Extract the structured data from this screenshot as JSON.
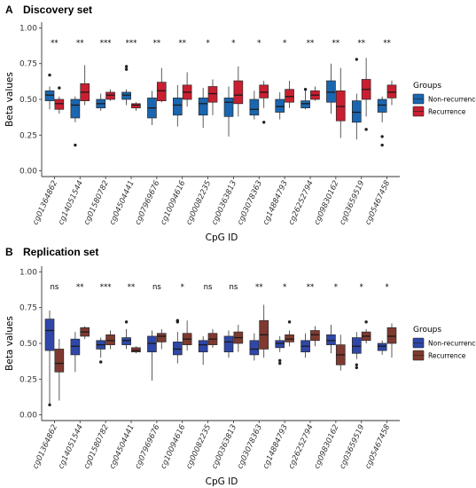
{
  "chart_data": [
    {
      "type": "box",
      "panel_letter": "A",
      "title": "Discovery set",
      "xlabel": "CpG ID",
      "ylabel": "Beta values",
      "ylim": [
        -0.04,
        1.04
      ],
      "yticks": [
        "0.00",
        "0.25",
        "0.50",
        "0.75",
        "1.00"
      ],
      "categories": [
        "cg01364862",
        "cg14051544",
        "cg01580782",
        "cg04504441",
        "cg07969676",
        "cg10094616",
        "cg00082235",
        "cg00363813",
        "cg03078363",
        "cg14884793",
        "cg26252794",
        "cg09830162",
        "cg03659519",
        "cg05467458"
      ],
      "significance": [
        "**",
        "**",
        "***",
        "***",
        "**",
        "**",
        "*",
        "*",
        "*",
        "*",
        "**",
        "**",
        "**",
        "**"
      ],
      "legend": {
        "title": "Groups",
        "position": "right"
      },
      "series": [
        {
          "name": "Non-recurrence",
          "color": "#1a66b0",
          "boxes": [
            {
              "low": 0.43,
              "q1": 0.49,
              "med": 0.53,
              "q3": 0.56,
              "high": 0.59,
              "outliers": [
                0.67
              ]
            },
            {
              "low": 0.34,
              "q1": 0.37,
              "med": 0.46,
              "q3": 0.5,
              "high": 0.52,
              "outliers": [
                0.18
              ]
            },
            {
              "low": 0.42,
              "q1": 0.44,
              "med": 0.47,
              "q3": 0.5,
              "high": 0.54,
              "outliers": []
            },
            {
              "low": 0.46,
              "q1": 0.5,
              "med": 0.53,
              "q3": 0.55,
              "high": 0.57,
              "outliers": [
                0.71,
                0.73
              ]
            },
            {
              "low": 0.32,
              "q1": 0.37,
              "med": 0.44,
              "q3": 0.51,
              "high": 0.56,
              "outliers": []
            },
            {
              "low": 0.31,
              "q1": 0.39,
              "med": 0.46,
              "q3": 0.51,
              "high": 0.6,
              "outliers": []
            },
            {
              "low": 0.3,
              "q1": 0.39,
              "med": 0.47,
              "q3": 0.51,
              "high": 0.58,
              "outliers": []
            },
            {
              "low": 0.24,
              "q1": 0.38,
              "med": 0.48,
              "q3": 0.51,
              "high": 0.59,
              "outliers": []
            },
            {
              "low": 0.36,
              "q1": 0.39,
              "med": 0.43,
              "q3": 0.5,
              "high": 0.56,
              "outliers": []
            },
            {
              "low": 0.36,
              "q1": 0.41,
              "med": 0.45,
              "q3": 0.5,
              "high": 0.55,
              "outliers": []
            },
            {
              "low": 0.43,
              "q1": 0.44,
              "med": 0.47,
              "q3": 0.49,
              "high": 0.56,
              "outliers": [
                0.57
              ]
            },
            {
              "low": 0.4,
              "q1": 0.48,
              "med": 0.55,
              "q3": 0.63,
              "high": 0.75,
              "outliers": []
            },
            {
              "low": 0.22,
              "q1": 0.34,
              "med": 0.41,
              "q3": 0.49,
              "high": 0.54,
              "outliers": [
                0.78
              ]
            },
            {
              "low": 0.34,
              "q1": 0.41,
              "med": 0.46,
              "q3": 0.5,
              "high": 0.52,
              "outliers": [
                0.24,
                0.18
              ]
            }
          ]
        },
        {
          "name": "Recurrence",
          "color": "#c91f31",
          "boxes": [
            {
              "low": 0.4,
              "q1": 0.43,
              "med": 0.47,
              "q3": 0.5,
              "high": 0.52,
              "outliers": [
                0.58
              ]
            },
            {
              "low": 0.46,
              "q1": 0.49,
              "med": 0.55,
              "q3": 0.61,
              "high": 0.74,
              "outliers": []
            },
            {
              "low": 0.49,
              "q1": 0.5,
              "med": 0.53,
              "q3": 0.55,
              "high": 0.57,
              "outliers": []
            },
            {
              "low": 0.42,
              "q1": 0.44,
              "med": 0.46,
              "q3": 0.47,
              "high": 0.48,
              "outliers": []
            },
            {
              "low": 0.48,
              "q1": 0.49,
              "med": 0.56,
              "q3": 0.62,
              "high": 0.72,
              "outliers": []
            },
            {
              "low": 0.45,
              "q1": 0.5,
              "med": 0.55,
              "q3": 0.6,
              "high": 0.69,
              "outliers": []
            },
            {
              "low": 0.39,
              "q1": 0.48,
              "med": 0.54,
              "q3": 0.59,
              "high": 0.64,
              "outliers": []
            },
            {
              "low": 0.38,
              "q1": 0.47,
              "med": 0.53,
              "q3": 0.63,
              "high": 0.73,
              "outliers": []
            },
            {
              "low": 0.44,
              "q1": 0.51,
              "med": 0.55,
              "q3": 0.6,
              "high": 0.63,
              "outliers": [
                0.34
              ]
            },
            {
              "low": 0.44,
              "q1": 0.48,
              "med": 0.52,
              "q3": 0.57,
              "high": 0.63,
              "outliers": []
            },
            {
              "low": 0.49,
              "q1": 0.5,
              "med": 0.53,
              "q3": 0.56,
              "high": 0.59,
              "outliers": []
            },
            {
              "low": 0.23,
              "q1": 0.35,
              "med": 0.45,
              "q3": 0.56,
              "high": 0.72,
              "outliers": []
            },
            {
              "low": 0.38,
              "q1": 0.5,
              "med": 0.57,
              "q3": 0.64,
              "high": 0.79,
              "outliers": [
                0.29
              ]
            },
            {
              "low": 0.46,
              "q1": 0.51,
              "med": 0.55,
              "q3": 0.6,
              "high": 0.63,
              "outliers": []
            }
          ]
        }
      ]
    },
    {
      "type": "box",
      "panel_letter": "B",
      "title": "Replication set",
      "xlabel": "CpG ID",
      "ylabel": "Beta values",
      "ylim": [
        -0.04,
        1.04
      ],
      "yticks": [
        "0.00",
        "0.25",
        "0.50",
        "0.75",
        "1.00"
      ],
      "categories": [
        "cg01364862",
        "cg14051544",
        "cg01580782",
        "cg04504441",
        "cg07969676",
        "cg10094616",
        "cg00082235",
        "cg00363813",
        "cg03078363",
        "cg14884793",
        "cg26252794",
        "cg09830162",
        "cg03659519",
        "cg05467458"
      ],
      "significance": [
        "ns",
        "**",
        "***",
        "**",
        "ns",
        "*",
        "ns",
        "ns",
        "**",
        "*",
        "**",
        "*",
        "*",
        "*"
      ],
      "legend": {
        "title": "Groups",
        "position": "right"
      },
      "series": [
        {
          "name": "Non-recurrence",
          "color": "#2f47a8",
          "boxes": [
            {
              "low": 0.07,
              "q1": 0.45,
              "med": 0.59,
              "q3": 0.67,
              "high": 0.73,
              "outliers": [
                0.07
              ]
            },
            {
              "low": 0.3,
              "q1": 0.42,
              "med": 0.48,
              "q3": 0.53,
              "high": 0.58,
              "outliers": []
            },
            {
              "low": 0.4,
              "q1": 0.46,
              "med": 0.49,
              "q3": 0.52,
              "high": 0.54,
              "outliers": [
                0.37
              ]
            },
            {
              "low": 0.46,
              "q1": 0.49,
              "med": 0.52,
              "q3": 0.54,
              "high": 0.6,
              "outliers": [
                0.65
              ]
            },
            {
              "low": 0.24,
              "q1": 0.44,
              "med": 0.5,
              "q3": 0.55,
              "high": 0.59,
              "outliers": []
            },
            {
              "low": 0.36,
              "q1": 0.42,
              "med": 0.46,
              "q3": 0.51,
              "high": 0.58,
              "outliers": [
                0.65,
                0.66
              ]
            },
            {
              "low": 0.35,
              "q1": 0.44,
              "med": 0.49,
              "q3": 0.52,
              "high": 0.55,
              "outliers": []
            },
            {
              "low": 0.4,
              "q1": 0.44,
              "med": 0.51,
              "q3": 0.55,
              "high": 0.59,
              "outliers": []
            },
            {
              "low": 0.38,
              "q1": 0.42,
              "med": 0.46,
              "q3": 0.52,
              "high": 0.57,
              "outliers": []
            },
            {
              "low": 0.44,
              "q1": 0.47,
              "med": 0.5,
              "q3": 0.52,
              "high": 0.55,
              "outliers": [
                0.38,
                0.36
              ]
            },
            {
              "low": 0.4,
              "q1": 0.44,
              "med": 0.48,
              "q3": 0.52,
              "high": 0.57,
              "outliers": []
            },
            {
              "low": 0.43,
              "q1": 0.49,
              "med": 0.52,
              "q3": 0.56,
              "high": 0.63,
              "outliers": []
            },
            {
              "low": 0.39,
              "q1": 0.43,
              "med": 0.48,
              "q3": 0.54,
              "high": 0.58,
              "outliers": [
                0.33,
                0.35
              ]
            },
            {
              "low": 0.42,
              "q1": 0.45,
              "med": 0.48,
              "q3": 0.5,
              "high": 0.52,
              "outliers": []
            }
          ]
        },
        {
          "name": "Recurrence",
          "color": "#7e3a30",
          "boxes": [
            {
              "low": 0.1,
              "q1": 0.3,
              "med": 0.36,
              "q3": 0.46,
              "high": 0.53,
              "outliers": []
            },
            {
              "low": 0.53,
              "q1": 0.55,
              "med": 0.58,
              "q3": 0.61,
              "high": 0.62,
              "outliers": []
            },
            {
              "low": 0.46,
              "q1": 0.49,
              "med": 0.52,
              "q3": 0.56,
              "high": 0.59,
              "outliers": []
            },
            {
              "low": 0.43,
              "q1": 0.44,
              "med": 0.45,
              "q3": 0.47,
              "high": 0.48,
              "outliers": []
            },
            {
              "low": 0.46,
              "q1": 0.51,
              "med": 0.55,
              "q3": 0.57,
              "high": 0.6,
              "outliers": []
            },
            {
              "low": 0.45,
              "q1": 0.49,
              "med": 0.53,
              "q3": 0.57,
              "high": 0.66,
              "outliers": []
            },
            {
              "low": 0.47,
              "q1": 0.49,
              "med": 0.53,
              "q3": 0.57,
              "high": 0.6,
              "outliers": []
            },
            {
              "low": 0.44,
              "q1": 0.5,
              "med": 0.54,
              "q3": 0.58,
              "high": 0.63,
              "outliers": []
            },
            {
              "low": 0.4,
              "q1": 0.46,
              "med": 0.56,
              "q3": 0.66,
              "high": 0.77,
              "outliers": []
            },
            {
              "low": 0.48,
              "q1": 0.51,
              "med": 0.53,
              "q3": 0.56,
              "high": 0.59,
              "outliers": [
                0.65
              ]
            },
            {
              "low": 0.48,
              "q1": 0.52,
              "med": 0.56,
              "q3": 0.59,
              "high": 0.62,
              "outliers": []
            },
            {
              "low": 0.31,
              "q1": 0.35,
              "med": 0.42,
              "q3": 0.49,
              "high": 0.56,
              "outliers": []
            },
            {
              "low": 0.5,
              "q1": 0.52,
              "med": 0.55,
              "q3": 0.58,
              "high": 0.6,
              "outliers": [
                0.65
              ]
            },
            {
              "low": 0.4,
              "q1": 0.5,
              "med": 0.55,
              "q3": 0.61,
              "high": 0.64,
              "outliers": []
            }
          ]
        }
      ]
    }
  ]
}
